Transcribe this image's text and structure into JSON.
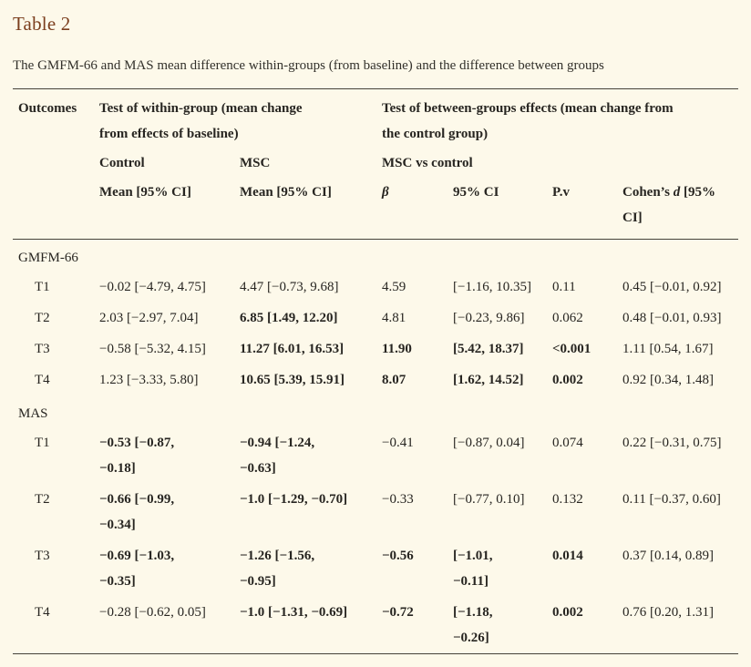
{
  "title": "Table 2",
  "caption": "The GMFM-66 and MAS mean difference within-groups (from baseline) and the difference between groups",
  "colors": {
    "background": "#fdf9ea",
    "title": "#7b3e1d",
    "rule": "#45423a",
    "text": "#272521"
  },
  "header": {
    "outcomes": "Outcomes",
    "within_group": "Test of within-group (mean change\nfrom effects of baseline)",
    "between_groups": "Test of between-groups effects (mean change from\nthe control group)",
    "control": "Control",
    "msc": "MSC",
    "msc_vs_control": "MSC vs control",
    "mean_ci_control": "Mean [95% CI]",
    "mean_ci_msc": "Mean [95% CI]",
    "beta": "β",
    "ci95": "95% CI",
    "pv": "P.v",
    "cohen_prefix": "Cohen’s ",
    "cohen_d": "d",
    "cohen_suffix": " [95%\nCI]"
  },
  "sections": [
    {
      "label": "GMFM-66",
      "rows": [
        {
          "cells": [
            "T1",
            "−0.02 [−4.79, 4.75]",
            "4.47 [−0.73, 9.68]",
            "4.59",
            "[−1.16, 10.35]",
            "0.11",
            "0.45 [−0.01, 0.92]"
          ],
          "bold": [
            false,
            false,
            false,
            false,
            false,
            false,
            false
          ]
        },
        {
          "cells": [
            "T2",
            "2.03 [−2.97, 7.04]",
            "6.85 [1.49, 12.20]",
            "4.81",
            "[−0.23, 9.86]",
            "0.062",
            "0.48 [−0.01, 0.93]"
          ],
          "bold": [
            false,
            false,
            true,
            false,
            false,
            false,
            false
          ]
        },
        {
          "cells": [
            "T3",
            "−0.58 [−5.32, 4.15]",
            "11.27 [6.01, 16.53]",
            "11.90",
            "[5.42, 18.37]",
            "<0.001",
            "1.11 [0.54, 1.67]"
          ],
          "bold": [
            false,
            false,
            true,
            true,
            true,
            true,
            false
          ]
        },
        {
          "cells": [
            "T4",
            "1.23 [−3.33, 5.80]",
            "10.65 [5.39, 15.91]",
            "8.07",
            "[1.62, 14.52]",
            "0.002",
            "0.92 [0.34, 1.48]"
          ],
          "bold": [
            false,
            false,
            true,
            true,
            true,
            true,
            false
          ]
        }
      ]
    },
    {
      "label": "MAS",
      "rows": [
        {
          "cells": [
            "T1",
            "−0.53 [−0.87,\n−0.18]",
            "−0.94 [−1.24,\n−0.63]",
            "−0.41",
            "[−0.87, 0.04]",
            "0.074",
            "0.22 [−0.31, 0.75]"
          ],
          "bold": [
            false,
            true,
            true,
            false,
            false,
            false,
            false
          ]
        },
        {
          "cells": [
            "T2",
            "−0.66 [−0.99,\n−0.34]",
            "−1.0 [−1.29, −0.70]",
            "−0.33",
            "[−0.77, 0.10]",
            "0.132",
            "0.11 [−0.37, 0.60]"
          ],
          "bold": [
            false,
            true,
            true,
            false,
            false,
            false,
            false
          ]
        },
        {
          "cells": [
            "T3",
            "−0.69 [−1.03,\n−0.35]",
            "−1.26 [−1.56,\n−0.95]",
            "−0.56",
            "[−1.01,\n−0.11]",
            "0.014",
            "0.37 [0.14, 0.89]"
          ],
          "bold": [
            false,
            true,
            true,
            true,
            true,
            true,
            false
          ]
        },
        {
          "cells": [
            "T4",
            "−0.28 [−0.62, 0.05]",
            "−1.0 [−1.31, −0.69]",
            "−0.72",
            "[−1.18,\n−0.26]",
            "0.002",
            "0.76 [0.20, 1.31]"
          ],
          "bold": [
            false,
            false,
            true,
            true,
            true,
            true,
            false
          ]
        }
      ]
    }
  ]
}
